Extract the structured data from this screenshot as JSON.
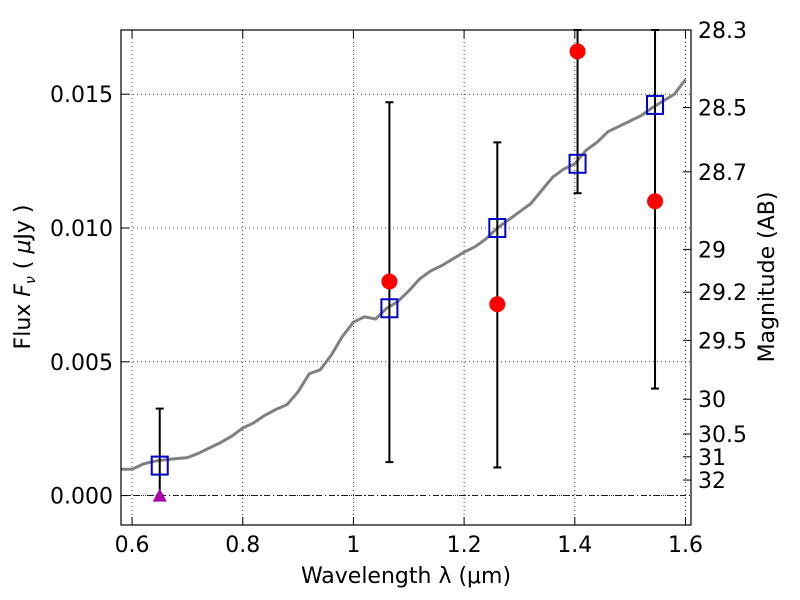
{
  "chart_data": {
    "type": "scatter",
    "xlabel": "Wavelength  λ (μm)",
    "ylabel": "Flux  F_ν  ( μJy )",
    "ylabel_parts": {
      "prefix": "Flux  ",
      "symbol": "F",
      "subscript": "ν",
      "open": "  ( ",
      "mu": "μ",
      "unit": "Jy )"
    },
    "y2label": "Magnitude (AB)",
    "xlim": [
      0.58,
      1.61
    ],
    "ylim": [
      -0.0011,
      0.0174
    ],
    "grid": true,
    "grid_style": "dotted",
    "xticks": [
      0.6,
      0.8,
      1.0,
      1.2,
      1.4,
      1.6
    ],
    "xtick_labels": [
      "0.6",
      "0.8",
      "1",
      "1.2",
      "1.4",
      "1.6"
    ],
    "yticks": [
      0.0,
      0.005,
      0.01,
      0.015
    ],
    "ytick_labels": [
      "0.000",
      "0.005",
      "0.010",
      "0.015"
    ],
    "y2_ticks": [
      {
        "label": "28.3",
        "flux": 0.0174
      },
      {
        "label": "28.5",
        "flux": 0.0145
      },
      {
        "label": "28.7",
        "flux": 0.0121
      },
      {
        "label": "29",
        "flux": 0.0092
      },
      {
        "label": "29.2",
        "flux": 0.0076
      },
      {
        "label": "29.5",
        "flux": 0.0058
      },
      {
        "label": "30",
        "flux": 0.0036
      },
      {
        "label": "30.5",
        "flux": 0.0023
      },
      {
        "label": "31",
        "flux": 0.00145
      },
      {
        "label": "32",
        "flux": 0.00058
      }
    ],
    "zero_line": 0.0,
    "colors": {
      "model": "#808080",
      "observed": "#ff0000",
      "model_band": "#0000cc",
      "upper_limit": "#aa00aa",
      "errorbar": "#000000"
    },
    "series": [
      {
        "type": "line",
        "points": [
          [
            0.58,
            0.00098
          ],
          [
            0.6,
            0.00098
          ],
          [
            0.62,
            0.00118
          ],
          [
            0.64,
            0.00128
          ],
          [
            0.66,
            0.00134
          ],
          [
            0.68,
            0.00138
          ],
          [
            0.7,
            0.00142
          ],
          [
            0.72,
            0.00158
          ],
          [
            0.74,
            0.00178
          ],
          [
            0.76,
            0.00198
          ],
          [
            0.78,
            0.00222
          ],
          [
            0.8,
            0.00252
          ],
          [
            0.82,
            0.00272
          ],
          [
            0.84,
            0.003
          ],
          [
            0.86,
            0.00322
          ],
          [
            0.88,
            0.0034
          ],
          [
            0.9,
            0.00388
          ],
          [
            0.92,
            0.00455
          ],
          [
            0.94,
            0.0047
          ],
          [
            0.96,
            0.00525
          ],
          [
            0.98,
            0.00595
          ],
          [
            1.0,
            0.00648
          ],
          [
            1.02,
            0.00668
          ],
          [
            1.04,
            0.0066
          ],
          [
            1.06,
            0.007
          ],
          [
            1.08,
            0.00725
          ],
          [
            1.1,
            0.00765
          ],
          [
            1.12,
            0.0081
          ],
          [
            1.14,
            0.0084
          ],
          [
            1.16,
            0.0086
          ],
          [
            1.18,
            0.00885
          ],
          [
            1.2,
            0.0091
          ],
          [
            1.22,
            0.0093
          ],
          [
            1.24,
            0.0096
          ],
          [
            1.26,
            0.01
          ],
          [
            1.28,
            0.0103
          ],
          [
            1.3,
            0.0106
          ],
          [
            1.32,
            0.0109
          ],
          [
            1.34,
            0.0114
          ],
          [
            1.36,
            0.0119
          ],
          [
            1.38,
            0.0122
          ],
          [
            1.4,
            0.0124
          ],
          [
            1.42,
            0.0129
          ],
          [
            1.44,
            0.0132
          ],
          [
            1.46,
            0.0136
          ],
          [
            1.48,
            0.0138
          ],
          [
            1.5,
            0.014
          ],
          [
            1.52,
            0.0142
          ],
          [
            1.54,
            0.0145
          ],
          [
            1.56,
            0.01475
          ],
          [
            1.58,
            0.015
          ],
          [
            1.6,
            0.01555
          ]
        ]
      },
      {
        "type": "scatter",
        "marker": "circle",
        "points": [
          [
            1.065,
            0.008
          ],
          [
            1.26,
            0.00715
          ],
          [
            1.405,
            0.0166
          ],
          [
            1.545,
            0.011
          ]
        ]
      },
      {
        "type": "scatter",
        "marker": "square",
        "points": [
          [
            0.65,
            0.00112
          ],
          [
            1.065,
            0.007
          ],
          [
            1.26,
            0.01
          ],
          [
            1.405,
            0.0124
          ],
          [
            1.545,
            0.0146
          ]
        ]
      },
      {
        "type": "scatter",
        "marker": "triangle",
        "points": [
          [
            0.65,
            0.0
          ]
        ]
      },
      {
        "type": "errorbar",
        "bars": [
          {
            "x": 0.65,
            "low": 0.0,
            "high": 0.00325
          },
          {
            "x": 1.065,
            "low": 0.00125,
            "high": 0.0147
          },
          {
            "x": 1.26,
            "low": 0.00105,
            "high": 0.0132
          },
          {
            "x": 1.405,
            "low": 0.0113,
            "high": 0.0174
          },
          {
            "x": 1.545,
            "low": 0.004,
            "high": 0.0174
          }
        ]
      }
    ]
  }
}
